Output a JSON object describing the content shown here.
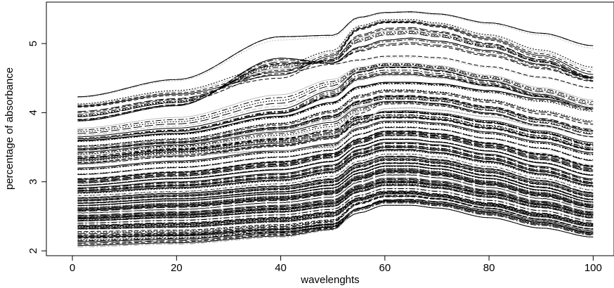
{
  "chart_data": {
    "type": "line",
    "title": "",
    "xlabel": "wavelenghts",
    "ylabel": "percentage of absorbance",
    "xlim": [
      -5,
      104
    ],
    "ylim": [
      1.93,
      5.6
    ],
    "xticks": [
      0,
      20,
      40,
      60,
      80,
      100
    ],
    "yticks": [
      2,
      3,
      4,
      5
    ],
    "grid": false,
    "legend": "none",
    "x_range": [
      1,
      100
    ],
    "series_count": 215,
    "line_color": "#000000",
    "secondary_line_color": "#bdbdbd",
    "line_styles": [
      "solid",
      "dashed",
      "long-dashed",
      "dotted",
      "dot-dash"
    ],
    "profile": {
      "description": "Each curve is a smooth absorbance spectrum: gentle rise from x=1, small bump near x=40-43, steep rise between x=50 and x=60, broad peak near x=62-66, then decline to x=100.",
      "x": [
        1,
        20,
        40,
        50,
        55,
        60,
        65,
        70,
        80,
        90,
        100
      ]
    },
    "series": [
      {
        "values": [
          4.23,
          4.48,
          5.1,
          5.12,
          5.38,
          5.45,
          5.46,
          5.43,
          5.3,
          5.15,
          4.97
        ]
      },
      {
        "values": [
          4.08,
          4.25,
          4.5,
          4.8,
          5.2,
          5.3,
          5.3,
          5.24,
          5.05,
          4.8,
          4.52
        ]
      },
      {
        "values": [
          3.88,
          4.1,
          4.79,
          4.72,
          4.95,
          5.05,
          5.08,
          5.04,
          4.9,
          4.7,
          4.5
        ]
      },
      {
        "values": [
          3.95,
          4.15,
          4.55,
          4.7,
          4.75,
          4.8,
          4.8,
          4.78,
          4.65,
          4.5,
          4.35
        ]
      },
      {
        "values": [
          3.63,
          3.75,
          4.02,
          4.3,
          4.58,
          4.65,
          4.65,
          4.6,
          4.45,
          4.25,
          4.05
        ]
      },
      {
        "values": [
          3.6,
          3.7,
          3.95,
          4.15,
          4.38,
          4.44,
          4.44,
          4.42,
          4.32,
          4.2,
          4.06
        ]
      },
      {
        "values": [
          3.5,
          3.6,
          3.82,
          4.0,
          4.22,
          4.3,
          4.3,
          4.27,
          4.15,
          3.98,
          3.83
        ]
      },
      {
        "values": [
          3.45,
          3.55,
          3.75,
          3.9,
          4.1,
          4.17,
          4.17,
          4.14,
          4.0,
          3.82,
          3.65
        ]
      },
      {
        "values": [
          3.25,
          3.38,
          3.45,
          3.5,
          3.82,
          4.06,
          4.07,
          4.04,
          3.94,
          3.8,
          3.65
        ]
      },
      {
        "values": [
          3.35,
          3.47,
          3.62,
          3.75,
          3.95,
          4.0,
          4.0,
          3.97,
          3.85,
          3.7,
          3.52
        ]
      },
      {
        "values": [
          3.2,
          3.3,
          3.45,
          3.55,
          3.78,
          3.88,
          3.88,
          3.85,
          3.72,
          3.58,
          3.42
        ]
      },
      {
        "values": [
          3.1,
          3.2,
          3.35,
          3.45,
          3.68,
          3.78,
          3.78,
          3.75,
          3.62,
          3.48,
          3.3
        ]
      },
      {
        "values": [
          3.0,
          3.1,
          3.25,
          3.38,
          3.58,
          3.7,
          3.7,
          3.66,
          3.52,
          3.35,
          3.18
        ]
      },
      {
        "values": [
          2.95,
          3.05,
          3.18,
          3.3,
          3.52,
          3.62,
          3.62,
          3.58,
          3.45,
          3.28,
          3.1
        ]
      },
      {
        "values": [
          2.9,
          2.98,
          3.1,
          3.22,
          3.45,
          3.55,
          3.55,
          3.52,
          3.38,
          3.2,
          3.02
        ]
      },
      {
        "values": [
          2.85,
          2.92,
          3.03,
          3.15,
          3.38,
          3.47,
          3.47,
          3.43,
          3.3,
          3.12,
          2.95
        ]
      },
      {
        "values": [
          2.8,
          2.86,
          2.97,
          3.08,
          3.3,
          3.4,
          3.4,
          3.36,
          3.22,
          3.05,
          2.88
        ]
      },
      {
        "values": [
          2.75,
          2.82,
          2.92,
          3.02,
          3.25,
          3.35,
          3.35,
          3.3,
          3.17,
          3.0,
          2.82
        ]
      },
      {
        "values": [
          2.7,
          2.76,
          2.86,
          2.96,
          3.18,
          3.28,
          3.28,
          3.24,
          3.1,
          2.93,
          2.75
        ]
      },
      {
        "values": [
          2.65,
          2.72,
          2.82,
          2.9,
          3.12,
          3.22,
          3.22,
          3.18,
          3.04,
          2.87,
          2.7
        ]
      },
      {
        "values": [
          2.6,
          2.66,
          2.76,
          2.85,
          3.06,
          3.16,
          3.16,
          3.12,
          2.98,
          2.82,
          2.65
        ]
      },
      {
        "values": [
          2.55,
          2.6,
          2.7,
          2.78,
          3.0,
          3.1,
          3.1,
          3.06,
          2.92,
          2.76,
          2.6
        ]
      },
      {
        "values": [
          2.5,
          2.55,
          2.64,
          2.72,
          2.93,
          3.03,
          3.03,
          2.99,
          2.86,
          2.7,
          2.55
        ]
      },
      {
        "values": [
          2.45,
          2.5,
          2.58,
          2.66,
          2.88,
          2.97,
          2.97,
          2.93,
          2.8,
          2.65,
          2.5
        ]
      },
      {
        "values": [
          2.4,
          2.44,
          2.52,
          2.6,
          2.8,
          2.9,
          2.9,
          2.86,
          2.73,
          2.58,
          2.43
        ]
      },
      {
        "values": [
          2.35,
          2.38,
          2.46,
          2.54,
          2.75,
          2.84,
          2.84,
          2.8,
          2.67,
          2.52,
          2.38
        ]
      },
      {
        "values": [
          2.28,
          2.3,
          2.38,
          2.45,
          2.7,
          2.8,
          2.8,
          2.76,
          2.62,
          2.46,
          2.32
        ]
      },
      {
        "values": [
          2.22,
          2.25,
          2.33,
          2.4,
          2.62,
          2.72,
          2.72,
          2.68,
          2.55,
          2.4,
          2.25
        ]
      },
      {
        "values": [
          2.2,
          2.22,
          2.28,
          2.35,
          2.55,
          2.66,
          2.66,
          2.62,
          2.48,
          2.33,
          2.2
        ]
      },
      {
        "values": [
          2.06,
          2.1,
          2.2,
          2.3,
          2.6,
          2.72,
          2.73,
          2.7,
          2.58,
          2.43,
          2.28
        ]
      }
    ]
  }
}
